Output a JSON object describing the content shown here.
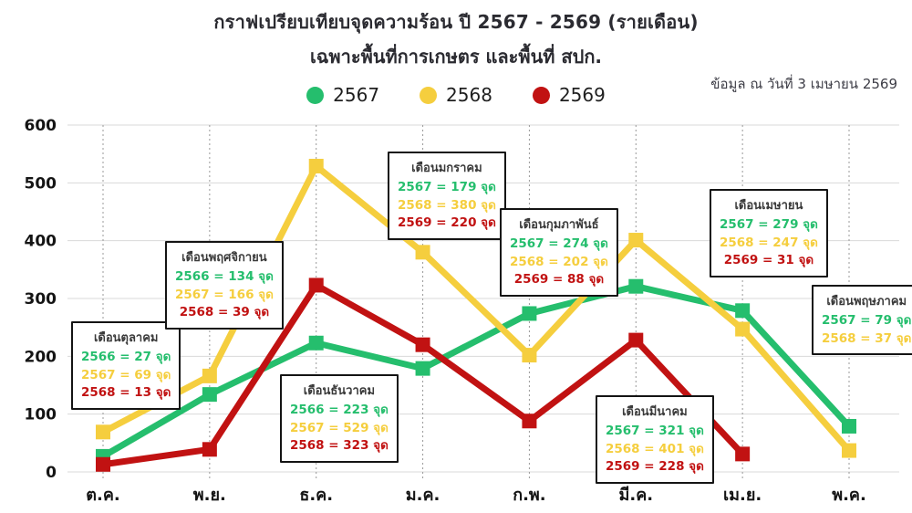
{
  "title": "กราฟเปรียบเทียบจุดความร้อน ปี 2567 - 2569 (รายเดือน)",
  "subtitle": "เฉพาะพื้นที่การเกษตร และพื้นที่ สปก.",
  "data_as_of": "ข้อมูล ณ วันที่ 3 เมษายน 2569",
  "colors": {
    "series_2567": "#25be6d",
    "series_2568": "#f5ce3e",
    "series_2569": "#c11212",
    "grid_horizontal": "#d9d9d9",
    "grid_vertical": "#999999",
    "title_text": "#2b2b31",
    "background": "#ffffff"
  },
  "legend": [
    {
      "label": "2567",
      "color": "#25be6d"
    },
    {
      "label": "2568",
      "color": "#f5ce3e"
    },
    {
      "label": "2569",
      "color": "#c11212"
    }
  ],
  "chart_data": {
    "type": "line",
    "categories": [
      "ต.ค.",
      "พ.ย.",
      "ธ.ค.",
      "ม.ค.",
      "ก.พ.",
      "มี.ค.",
      "เม.ย.",
      "พ.ค."
    ],
    "series": [
      {
        "name": "2567",
        "color": "#25be6d",
        "values": [
          27,
          134,
          223,
          179,
          274,
          321,
          279,
          79
        ]
      },
      {
        "name": "2568",
        "color": "#f5ce3e",
        "values": [
          69,
          166,
          529,
          380,
          202,
          401,
          247,
          37
        ]
      },
      {
        "name": "2569",
        "color": "#c11212",
        "values": [
          13,
          39,
          323,
          220,
          88,
          228,
          31,
          null
        ]
      }
    ],
    "title": "กราฟเปรียบเทียบจุดความร้อน ปี 2567 - 2569 (รายเดือน)",
    "xlabel": "",
    "ylabel": "",
    "ylim": [
      0,
      600
    ],
    "yticks": [
      0,
      100,
      200,
      300,
      400,
      500,
      600
    ],
    "grid": true,
    "legend_position": "top",
    "marker": "square"
  },
  "annotations": [
    {
      "month": "เดือนตุลาคม",
      "lines": [
        {
          "text": "2566 = 27 จุด",
          "color": "#25be6d"
        },
        {
          "text": "2567 = 69 จุด",
          "color": "#f5ce3e"
        },
        {
          "text": "2568 = 13  จุด",
          "color": "#c11212"
        }
      ]
    },
    {
      "month": "เดือนพฤศจิกายน",
      "lines": [
        {
          "text": "2566 = 134 จุด",
          "color": "#25be6d"
        },
        {
          "text": "2567 = 166 จุด",
          "color": "#f5ce3e"
        },
        {
          "text": "2568 = 39  จุด",
          "color": "#c11212"
        }
      ]
    },
    {
      "month": "เดือนธันวาคม",
      "lines": [
        {
          "text": "2566 = 223 จุด",
          "color": "#25be6d"
        },
        {
          "text": "2567 = 529 จุด",
          "color": "#f5ce3e"
        },
        {
          "text": "2568 = 323 จุด",
          "color": "#c11212"
        }
      ]
    },
    {
      "month": "เดือนมกราคม",
      "lines": [
        {
          "text": "2567 = 179  จุด",
          "color": "#25be6d"
        },
        {
          "text": "2568 = 380  จุด",
          "color": "#f5ce3e"
        },
        {
          "text": "2569 = 220 จุด",
          "color": "#c11212"
        }
      ]
    },
    {
      "month": "เดือนกุมภาพันธ์",
      "lines": [
        {
          "text": "2567 = 274 จุด",
          "color": "#25be6d"
        },
        {
          "text": "2568 = 202  จุด",
          "color": "#f5ce3e"
        },
        {
          "text": "2569 = 88 จุด",
          "color": "#c11212"
        }
      ]
    },
    {
      "month": "เดือนมีนาคม",
      "lines": [
        {
          "text": "2567 = 321 จุด",
          "color": "#25be6d"
        },
        {
          "text": "2568 = 401 จุด",
          "color": "#f5ce3e"
        },
        {
          "text": "2569 = 228 จุด",
          "color": "#c11212"
        }
      ]
    },
    {
      "month": "เดือนเมษายน",
      "lines": [
        {
          "text": "2567 = 279 จุด",
          "color": "#25be6d"
        },
        {
          "text": "2568 = 247 จุด",
          "color": "#f5ce3e"
        },
        {
          "text": "2569 = 31 จุด",
          "color": "#c11212"
        }
      ]
    },
    {
      "month": "เดือนพฤษภาคม",
      "lines": [
        {
          "text": "2567 = 79 จุด",
          "color": "#25be6d"
        },
        {
          "text": "2568 = 37 จุด",
          "color": "#f5ce3e"
        }
      ]
    }
  ]
}
